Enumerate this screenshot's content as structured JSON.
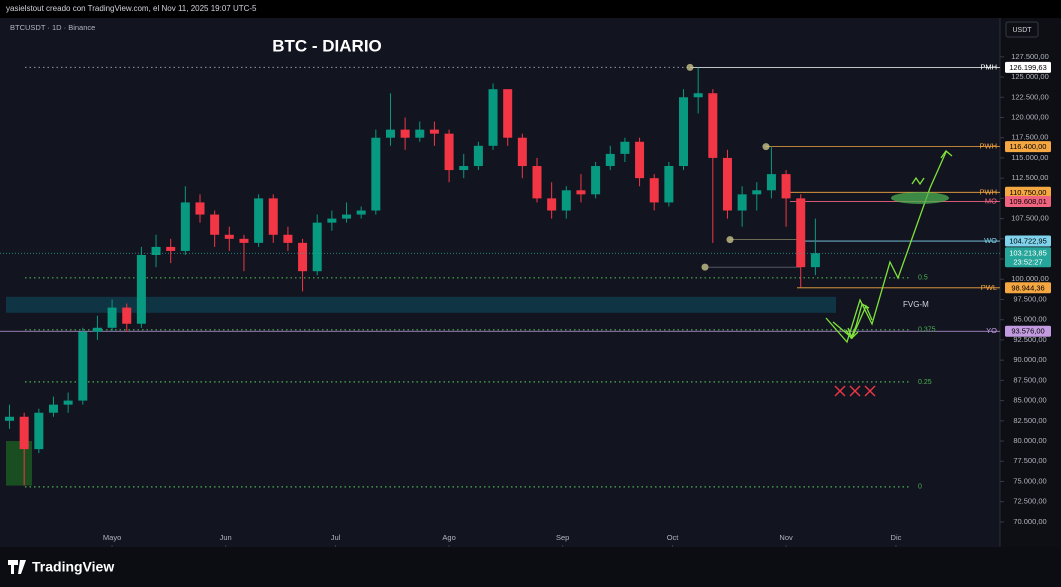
{
  "header": {
    "credit": "yasielstout creado con TradingView.com, el Nov 11, 2025 19:07 UTC-5",
    "symbol": "BTCUSDT · 1D · Binance",
    "currency": "USDT",
    "logo": "TradingView"
  },
  "chart_data": {
    "type": "candlestick",
    "title": "BTC - DIARIO",
    "open": [
      82500,
      83000,
      79000,
      83500,
      84500,
      85000,
      93500,
      94000,
      96500,
      94500,
      103000,
      104000,
      103500,
      109500,
      108000,
      105500,
      105000,
      104500,
      110000,
      105500,
      104500,
      101000,
      107000,
      107500,
      108000,
      108500,
      117500,
      118500,
      117500,
      118500,
      118000,
      113500,
      114000,
      116500,
      123500,
      117500,
      114000,
      110000,
      108500,
      111000,
      110500,
      114000,
      115500,
      117000,
      112500,
      109500,
      114000,
      122500,
      123000,
      115000,
      108500,
      110500,
      111000,
      113000,
      110000,
      101500
    ],
    "high": [
      84500,
      83500,
      84000,
      85500,
      86000,
      94000,
      95500,
      97500,
      97000,
      104000,
      105500,
      105000,
      111500,
      110500,
      108500,
      106500,
      105500,
      110500,
      110500,
      106500,
      105000,
      108000,
      108500,
      109500,
      109000,
      118500,
      123000,
      120000,
      119500,
      119500,
      118500,
      115500,
      117000,
      124200,
      123500,
      118000,
      115000,
      112000,
      111500,
      113000,
      114500,
      116500,
      117500,
      117500,
      113000,
      114500,
      123500,
      126200,
      123500,
      116000,
      111500,
      112000,
      116400,
      113500,
      110500,
      107500
    ],
    "low": [
      81500,
      74500,
      78500,
      83000,
      83500,
      84500,
      92500,
      93500,
      93500,
      94000,
      101500,
      102000,
      103000,
      107000,
      104000,
      103500,
      101000,
      104000,
      104500,
      103500,
      98500,
      100500,
      106000,
      107000,
      107500,
      108000,
      116500,
      116000,
      117000,
      116500,
      112000,
      112500,
      113500,
      116000,
      116500,
      112500,
      109500,
      107500,
      107500,
      109500,
      110000,
      113500,
      114500,
      111500,
      108500,
      109000,
      113500,
      120500,
      104500,
      107500,
      106500,
      108500,
      110000,
      106500,
      99000,
      100500
    ],
    "close": [
      83000,
      79000,
      83500,
      84500,
      85000,
      93500,
      94000,
      96500,
      94500,
      103000,
      104000,
      103500,
      109500,
      108000,
      105500,
      105000,
      104500,
      110000,
      105500,
      104500,
      101000,
      107000,
      107500,
      108000,
      108500,
      117500,
      118500,
      117500,
      118500,
      118000,
      113500,
      114000,
      116500,
      123500,
      117500,
      114000,
      110000,
      108500,
      111000,
      110500,
      114000,
      115500,
      117000,
      112500,
      109500,
      114000,
      122500,
      123000,
      115000,
      108500,
      110500,
      111000,
      113000,
      110000,
      101500,
      103214
    ],
    "up_color": "#089981",
    "down_color": "#f23645",
    "xlim": [
      -0.65,
      67.6
    ],
    "xticks": [
      {
        "value": 7,
        "label": "Mayo"
      },
      {
        "value": 14.75,
        "label": "Jun"
      },
      {
        "value": 22.25,
        "label": "Jul"
      },
      {
        "value": 30,
        "label": "Ago"
      },
      {
        "value": 37.75,
        "label": "Sep"
      },
      {
        "value": 45.25,
        "label": "Oct"
      },
      {
        "value": 53,
        "label": "Nov"
      },
      {
        "value": 60.5,
        "label": "Dic"
      }
    ],
    "ylim": [
      66900,
      132300
    ],
    "yticks": [
      {
        "value": 127500,
        "label": "127.500,00"
      },
      {
        "value": 125000,
        "label": "125.000,00"
      },
      {
        "value": 122500,
        "label": "122.500,00"
      },
      {
        "value": 120000,
        "label": "120.000,00"
      },
      {
        "value": 117500,
        "label": "117.500,00"
      },
      {
        "value": 115000,
        "label": "115.000,00"
      },
      {
        "value": 112500,
        "label": "112.500,00"
      },
      {
        "value": 110000,
        "label": "110.000,00"
      },
      {
        "value": 107500,
        "label": "107.500,00"
      },
      {
        "value": 105000,
        "label": "105.000,00"
      },
      {
        "value": 102500,
        "label": "102.500,00"
      },
      {
        "value": 100000,
        "label": "100.000,00"
      },
      {
        "value": 97500,
        "label": "97.500,00"
      },
      {
        "value": 95000,
        "label": "95.000,00"
      },
      {
        "value": 92500,
        "label": "92.500,00"
      },
      {
        "value": 90000,
        "label": "90.000,00"
      },
      {
        "value": 87500,
        "label": "87.500,00"
      },
      {
        "value": 85000,
        "label": "85.000,00"
      },
      {
        "value": 82500,
        "label": "82.500,00"
      },
      {
        "value": 80000,
        "label": "80.000,00"
      },
      {
        "value": 77500,
        "label": "77.500,00"
      },
      {
        "value": 75000,
        "label": "75.000,00"
      },
      {
        "value": 72500,
        "label": "72.500,00"
      },
      {
        "value": 70000,
        "label": "70.000,00"
      }
    ],
    "levels": [
      {
        "label": "PMH",
        "value": 126199.63,
        "value_label": "126.199,63",
        "color": "#ffffff"
      },
      {
        "label": "PWH",
        "value": 116400,
        "value_label": "116.400,00",
        "color": "#f5a742"
      },
      {
        "label": "PWH",
        "value": 110750,
        "value_label": "110.750,00",
        "color": "#f5a742"
      },
      {
        "label": "MO",
        "value": 109608.01,
        "value_label": "109.608,01",
        "color": "#f06480"
      },
      {
        "label": "WO",
        "value": 104722.95,
        "value_label": "104.722,95",
        "color": "#7fd3ec"
      },
      {
        "label": "PWL",
        "value": 98944.36,
        "value_label": "98.944,36",
        "color": "#f5a742"
      },
      {
        "label": "YO",
        "value": 93576,
        "value_label": "93.576,00",
        "color": "#c39be0"
      }
    ],
    "fib": [
      {
        "label": "0.5",
        "value": 100180
      },
      {
        "label": "0.375",
        "value": 93750
      },
      {
        "label": "0.25",
        "value": 87310
      },
      {
        "label": "0",
        "value": 74330
      }
    ],
    "fvg": {
      "label": "FVG-M",
      "top": 97830,
      "bottom": 95850
    },
    "price": {
      "value": 103213.85,
      "label": "103.213,85",
      "countdown": "23:52:27",
      "color": "#26a69a"
    }
  }
}
